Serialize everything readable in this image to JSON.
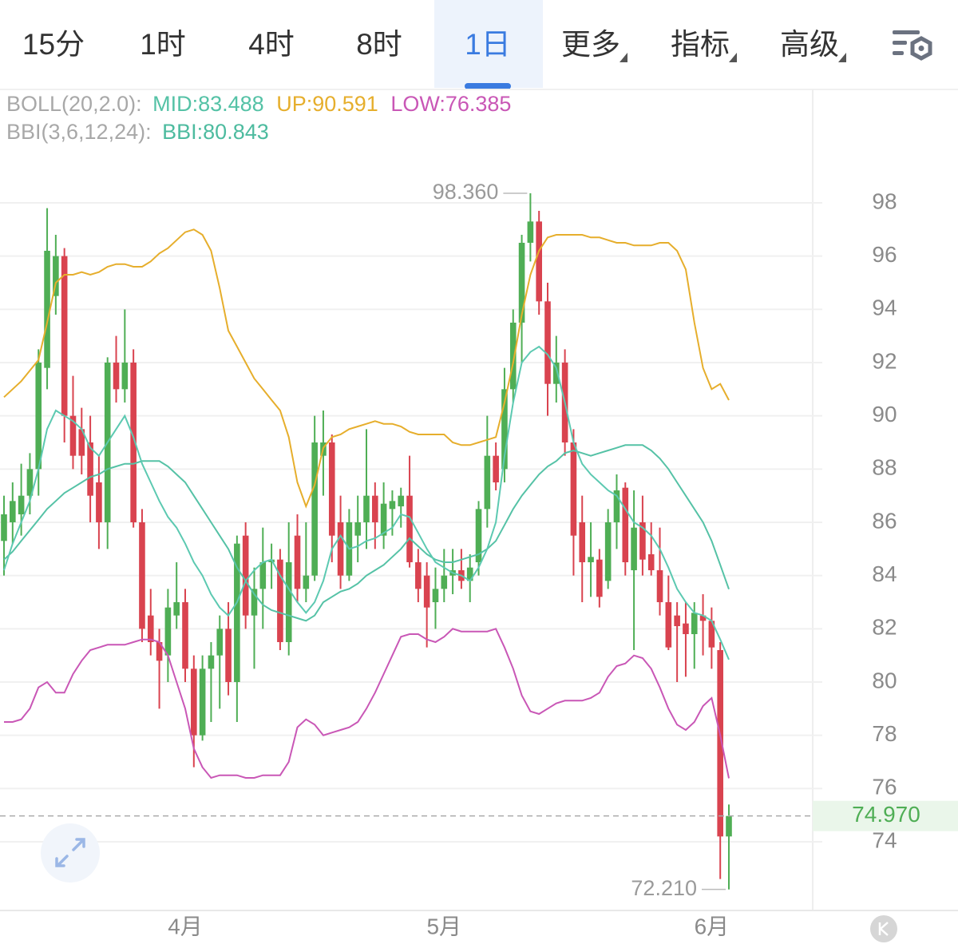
{
  "tabs": {
    "items": [
      "15分",
      "1时",
      "4时",
      "8时",
      "1日",
      "更多",
      "指标",
      "高级"
    ],
    "active": 4
  },
  "chart_data": {
    "type": "candlestick",
    "indicator_labels": [
      "BOLL(20,2.0):",
      "BBI(3,6,12,24):"
    ],
    "categories": [
      null,
      null,
      null,
      null,
      null,
      null,
      null,
      null,
      null,
      null,
      null,
      null,
      null,
      null,
      null,
      null,
      null,
      null,
      null,
      null,
      null,
      "4月",
      null,
      null,
      null,
      null,
      null,
      null,
      null,
      null,
      null,
      null,
      null,
      null,
      null,
      null,
      null,
      null,
      null,
      null,
      null,
      null,
      null,
      null,
      null,
      null,
      null,
      null,
      null,
      null,
      null,
      "5月",
      null,
      null,
      null,
      null,
      null,
      null,
      null,
      null,
      null,
      null,
      null,
      null,
      null,
      null,
      null,
      null,
      null,
      null,
      null,
      null,
      null,
      null,
      null,
      null,
      null,
      null,
      null,
      null,
      null,
      null,
      "6月",
      null,
      null
    ],
    "open": [
      85.3,
      86.0,
      86.3,
      87.0,
      88.0,
      91.8,
      94.5,
      96.0,
      90.0,
      89.5,
      89.0,
      87.5,
      86.0,
      92.0,
      91.0,
      92.0,
      86.0,
      82.5,
      81.5,
      81.0,
      82.5,
      83.0,
      80.5,
      78.0,
      80.5,
      81.0,
      82.0,
      80.0,
      85.5,
      82.5,
      83.5,
      84.5,
      84.6,
      81.5,
      85.5,
      83.5,
      84.0,
      88.5,
      89.0,
      86.0,
      84.0,
      85.5,
      86.0,
      87.0,
      85.5,
      86.5,
      86.6,
      87.0,
      84.5,
      84.0,
      83.0,
      83.5,
      84.0,
      84.2,
      83.8,
      84.5,
      86.5,
      88.5,
      88.0,
      91.0,
      93.5,
      96.5,
      97.3,
      94.3,
      91.2,
      92.0,
      89.0,
      86.0,
      84.5,
      84.6,
      83.8,
      86.0,
      87.3,
      84.2,
      86.0,
      84.8,
      84.2,
      83.0,
      82.5,
      82.2,
      81.8,
      82.5,
      82.3,
      81.2,
      74.2
    ],
    "high": [
      87.0,
      87.5,
      88.2,
      88.6,
      92.5,
      97.8,
      96.8,
      96.3,
      91.5,
      90.3,
      90.0,
      88.5,
      92.2,
      93.0,
      94.0,
      92.5,
      86.5,
      83.5,
      82.0,
      83.5,
      84.5,
      83.5,
      81.0,
      81.0,
      81.5,
      82.5,
      83.0,
      85.5,
      86.0,
      84.3,
      85.8,
      85.2,
      85.0,
      86.0,
      86.3,
      86.0,
      90.0,
      90.2,
      89.3,
      87.0,
      86.5,
      87.0,
      89.5,
      87.5,
      87.5,
      87.2,
      87.3,
      88.5,
      85.0,
      84.5,
      84.3,
      85.0,
      85.0,
      85.0,
      84.8,
      86.8,
      90.0,
      89.0,
      91.8,
      94.0,
      96.8,
      98.36,
      97.7,
      95.0,
      93.0,
      92.5,
      89.5,
      87.0,
      86.0,
      85.0,
      86.5,
      87.8,
      87.5,
      87.2,
      87.0,
      86.0,
      85.8,
      84.0,
      83.0,
      83.0,
      83.0,
      83.3,
      82.8,
      81.5,
      75.4
    ],
    "low": [
      84.0,
      85.2,
      85.5,
      86.3,
      87.0,
      91.0,
      93.8,
      89.0,
      88.0,
      87.8,
      86.0,
      85.0,
      85.0,
      90.5,
      90.5,
      85.8,
      81.5,
      81.0,
      79.0,
      80.0,
      82.0,
      80.0,
      76.8,
      77.8,
      78.5,
      79.0,
      79.5,
      78.5,
      82.0,
      80.5,
      82.0,
      83.5,
      81.2,
      81.0,
      83.0,
      83.0,
      83.8,
      87.0,
      84.5,
      83.5,
      83.8,
      84.5,
      85.0,
      85.0,
      85.0,
      85.5,
      85.8,
      84.3,
      83.0,
      81.3,
      82.0,
      83.0,
      83.3,
      83.5,
      83.0,
      84.0,
      85.8,
      87.2,
      87.5,
      90.5,
      92.0,
      95.8,
      93.8,
      90.0,
      90.5,
      88.5,
      84.0,
      83.0,
      83.2,
      82.8,
      83.5,
      85.0,
      84.0,
      81.2,
      84.0,
      84.0,
      82.5,
      81.2,
      80.0,
      80.2,
      80.5,
      81.0,
      80.5,
      72.6,
      72.21
    ],
    "close": [
      86.3,
      86.8,
      87.0,
      88.0,
      92.0,
      96.2,
      96.0,
      90.0,
      88.5,
      88.5,
      87.0,
      86.0,
      92.0,
      91.0,
      92.0,
      86.0,
      82.0,
      81.5,
      80.8,
      82.8,
      83.0,
      80.5,
      78.0,
      80.5,
      81.0,
      82.0,
      80.0,
      85.2,
      82.5,
      83.5,
      84.5,
      84.6,
      81.5,
      84.5,
      83.5,
      84.0,
      89.0,
      89.0,
      85.5,
      84.0,
      86.0,
      86.0,
      87.0,
      86.0,
      86.7,
      86.8,
      87.0,
      84.5,
      83.5,
      82.8,
      83.5,
      84.0,
      84.2,
      83.8,
      84.3,
      86.5,
      88.5,
      87.5,
      91.0,
      93.5,
      96.5,
      97.3,
      94.3,
      91.2,
      92.0,
      89.0,
      85.5,
      84.5,
      84.7,
      83.2,
      86.0,
      87.2,
      84.5,
      85.8,
      84.6,
      84.2,
      83.0,
      81.3,
      82.1,
      81.8,
      82.6,
      82.3,
      81.3,
      74.2,
      74.97
    ],
    "up_color": "#4fae55",
    "down_color": "#d9434f",
    "series": [
      {
        "name": "MID:",
        "color": "#55c2a6",
        "values": [
          84.6,
          84.9,
          85.3,
          85.7,
          86.1,
          86.5,
          86.8,
          87.1,
          87.3,
          87.5,
          87.7,
          87.8,
          88.0,
          88.1,
          88.2,
          88.2,
          88.3,
          88.3,
          88.3,
          88.1,
          87.8,
          87.5,
          87.0,
          86.5,
          86.0,
          85.5,
          85.0,
          84.3,
          83.8,
          83.3,
          82.9,
          82.7,
          82.6,
          82.5,
          82.4,
          82.3,
          82.5,
          83.0,
          83.2,
          83.4,
          83.5,
          83.7,
          84.0,
          84.2,
          84.4,
          84.7,
          85.0,
          85.4,
          85.1,
          84.8,
          84.6,
          84.5,
          84.5,
          84.6,
          84.7,
          84.8,
          85.0,
          85.3,
          85.9,
          86.5,
          87.0,
          87.4,
          87.8,
          88.1,
          88.3,
          88.6,
          88.7,
          88.6,
          88.5,
          88.6,
          88.7,
          88.8,
          88.9,
          88.9,
          88.9,
          88.7,
          88.4,
          88.0,
          87.5,
          87.0,
          86.5,
          86.0,
          85.3,
          84.4,
          83.488
        ]
      },
      {
        "name": "UP:",
        "color": "#e6ae2c",
        "values": [
          90.7,
          91.0,
          91.3,
          91.7,
          92.1,
          93.5,
          95.0,
          95.3,
          95.3,
          95.4,
          95.3,
          95.4,
          95.6,
          95.7,
          95.7,
          95.6,
          95.6,
          95.8,
          96.1,
          96.3,
          96.6,
          96.9,
          97.0,
          96.8,
          96.2,
          94.8,
          93.2,
          92.6,
          92.0,
          91.4,
          91.0,
          90.6,
          90.2,
          89.2,
          87.5,
          86.6,
          87.4,
          88.8,
          89.2,
          89.3,
          89.5,
          89.6,
          89.7,
          89.8,
          89.7,
          89.7,
          89.6,
          89.4,
          89.3,
          89.3,
          89.3,
          89.3,
          89.0,
          88.9,
          88.9,
          89.0,
          89.1,
          89.2,
          90.5,
          92.0,
          93.8,
          95.3,
          96.2,
          96.7,
          96.8,
          96.8,
          96.8,
          96.8,
          96.7,
          96.7,
          96.6,
          96.5,
          96.5,
          96.4,
          96.4,
          96.4,
          96.5,
          96.5,
          96.2,
          95.5,
          93.5,
          91.8,
          91.0,
          91.2,
          90.591
        ]
      },
      {
        "name": "LOW:",
        "color": "#c957b6",
        "values": [
          78.5,
          78.5,
          78.6,
          79.0,
          79.8,
          80.0,
          79.6,
          79.6,
          80.3,
          80.8,
          81.2,
          81.3,
          81.4,
          81.4,
          81.4,
          81.5,
          81.6,
          81.6,
          81.5,
          81.0,
          80.0,
          79.0,
          77.5,
          76.8,
          76.4,
          76.5,
          76.5,
          76.5,
          76.4,
          76.4,
          76.5,
          76.5,
          76.5,
          77.0,
          78.3,
          78.6,
          78.4,
          78.0,
          78.1,
          78.2,
          78.3,
          78.5,
          79.0,
          79.6,
          80.3,
          81.0,
          81.7,
          81.8,
          81.8,
          81.6,
          81.5,
          81.7,
          82.0,
          81.9,
          81.9,
          81.9,
          81.9,
          82.0,
          81.3,
          80.5,
          79.5,
          78.9,
          78.8,
          79.0,
          79.2,
          79.3,
          79.3,
          79.3,
          79.4,
          79.6,
          80.2,
          80.6,
          80.7,
          81.0,
          80.9,
          80.5,
          79.8,
          79.0,
          78.4,
          78.2,
          78.5,
          79.1,
          79.4,
          78.0,
          76.385
        ]
      },
      {
        "name": "BBI:",
        "color": "#5cc9b1",
        "values": [
          84.2,
          85.2,
          86.0,
          86.8,
          88.0,
          89.5,
          90.2,
          90.0,
          89.8,
          89.5,
          88.8,
          88.5,
          89.0,
          89.5,
          90.0,
          89.2,
          88.2,
          87.5,
          86.8,
          86.2,
          85.8,
          85.2,
          84.5,
          84.0,
          83.3,
          82.8,
          82.5,
          83.0,
          83.8,
          84.2,
          84.5,
          84.6,
          84.0,
          83.5,
          83.0,
          82.6,
          83.0,
          83.8,
          85.0,
          85.5,
          85.0,
          85.1,
          85.3,
          85.4,
          85.6,
          85.8,
          86.3,
          86.2,
          85.6,
          85.0,
          84.5,
          84.3,
          84.1,
          84.0,
          83.8,
          84.3,
          85.0,
          86.0,
          88.5,
          90.5,
          92.0,
          92.4,
          92.6,
          92.3,
          91.8,
          90.5,
          89.0,
          88.2,
          87.8,
          87.5,
          87.2,
          87.0,
          86.5,
          86.0,
          85.8,
          85.5,
          85.0,
          84.3,
          83.5,
          83.0,
          82.6,
          82.5,
          82.3,
          81.6,
          80.843
        ]
      }
    ],
    "ylim": [
      71.42,
      102.17
    ],
    "yticks": [
      74,
      76,
      78,
      80,
      82,
      84,
      86,
      88,
      90,
      92,
      94,
      96,
      98
    ],
    "grid": true,
    "annotations": [
      {
        "value": 98.36,
        "label": "98.360"
      },
      {
        "value": 72.21,
        "label": "72.210"
      }
    ],
    "last_price": {
      "value": 74.97,
      "label": "74.970"
    }
  }
}
